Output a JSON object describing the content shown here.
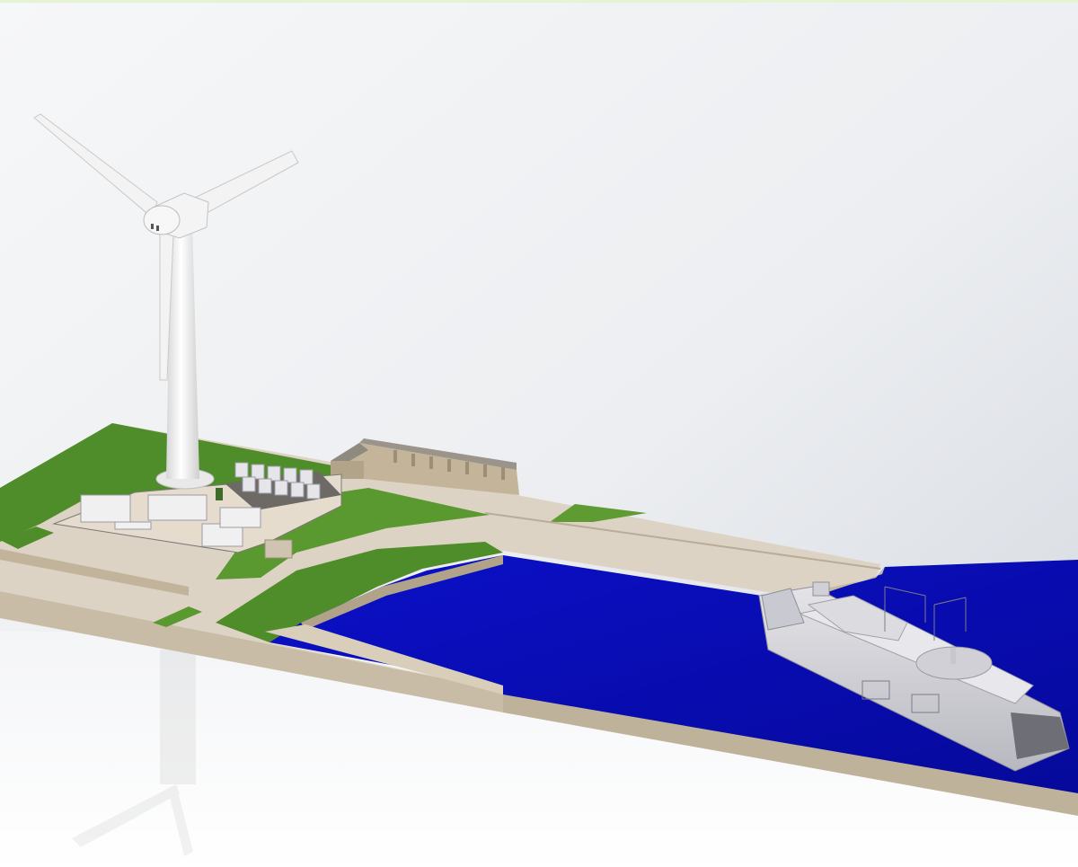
{
  "scene": {
    "subject": "wind-turbine-port-render",
    "colors": {
      "sky_top": "#f4f5f7",
      "sky_bottom": "#d3d8df",
      "grass": "#4f8c2a",
      "grass_light": "#5f9b33",
      "quay": "#ddd3c4",
      "quay_shadow": "#b9ac98",
      "wall": "#c9bca6",
      "water": "#0a0fc2",
      "water_dark": "#070aa0",
      "turbine": "#f2f2f2",
      "turbine_shadow": "#cfcfcf",
      "vessel": "#d9d9de",
      "vessel_dark": "#a9a9b2",
      "building": "#c4b59a",
      "roof": "#8f8a80"
    }
  }
}
